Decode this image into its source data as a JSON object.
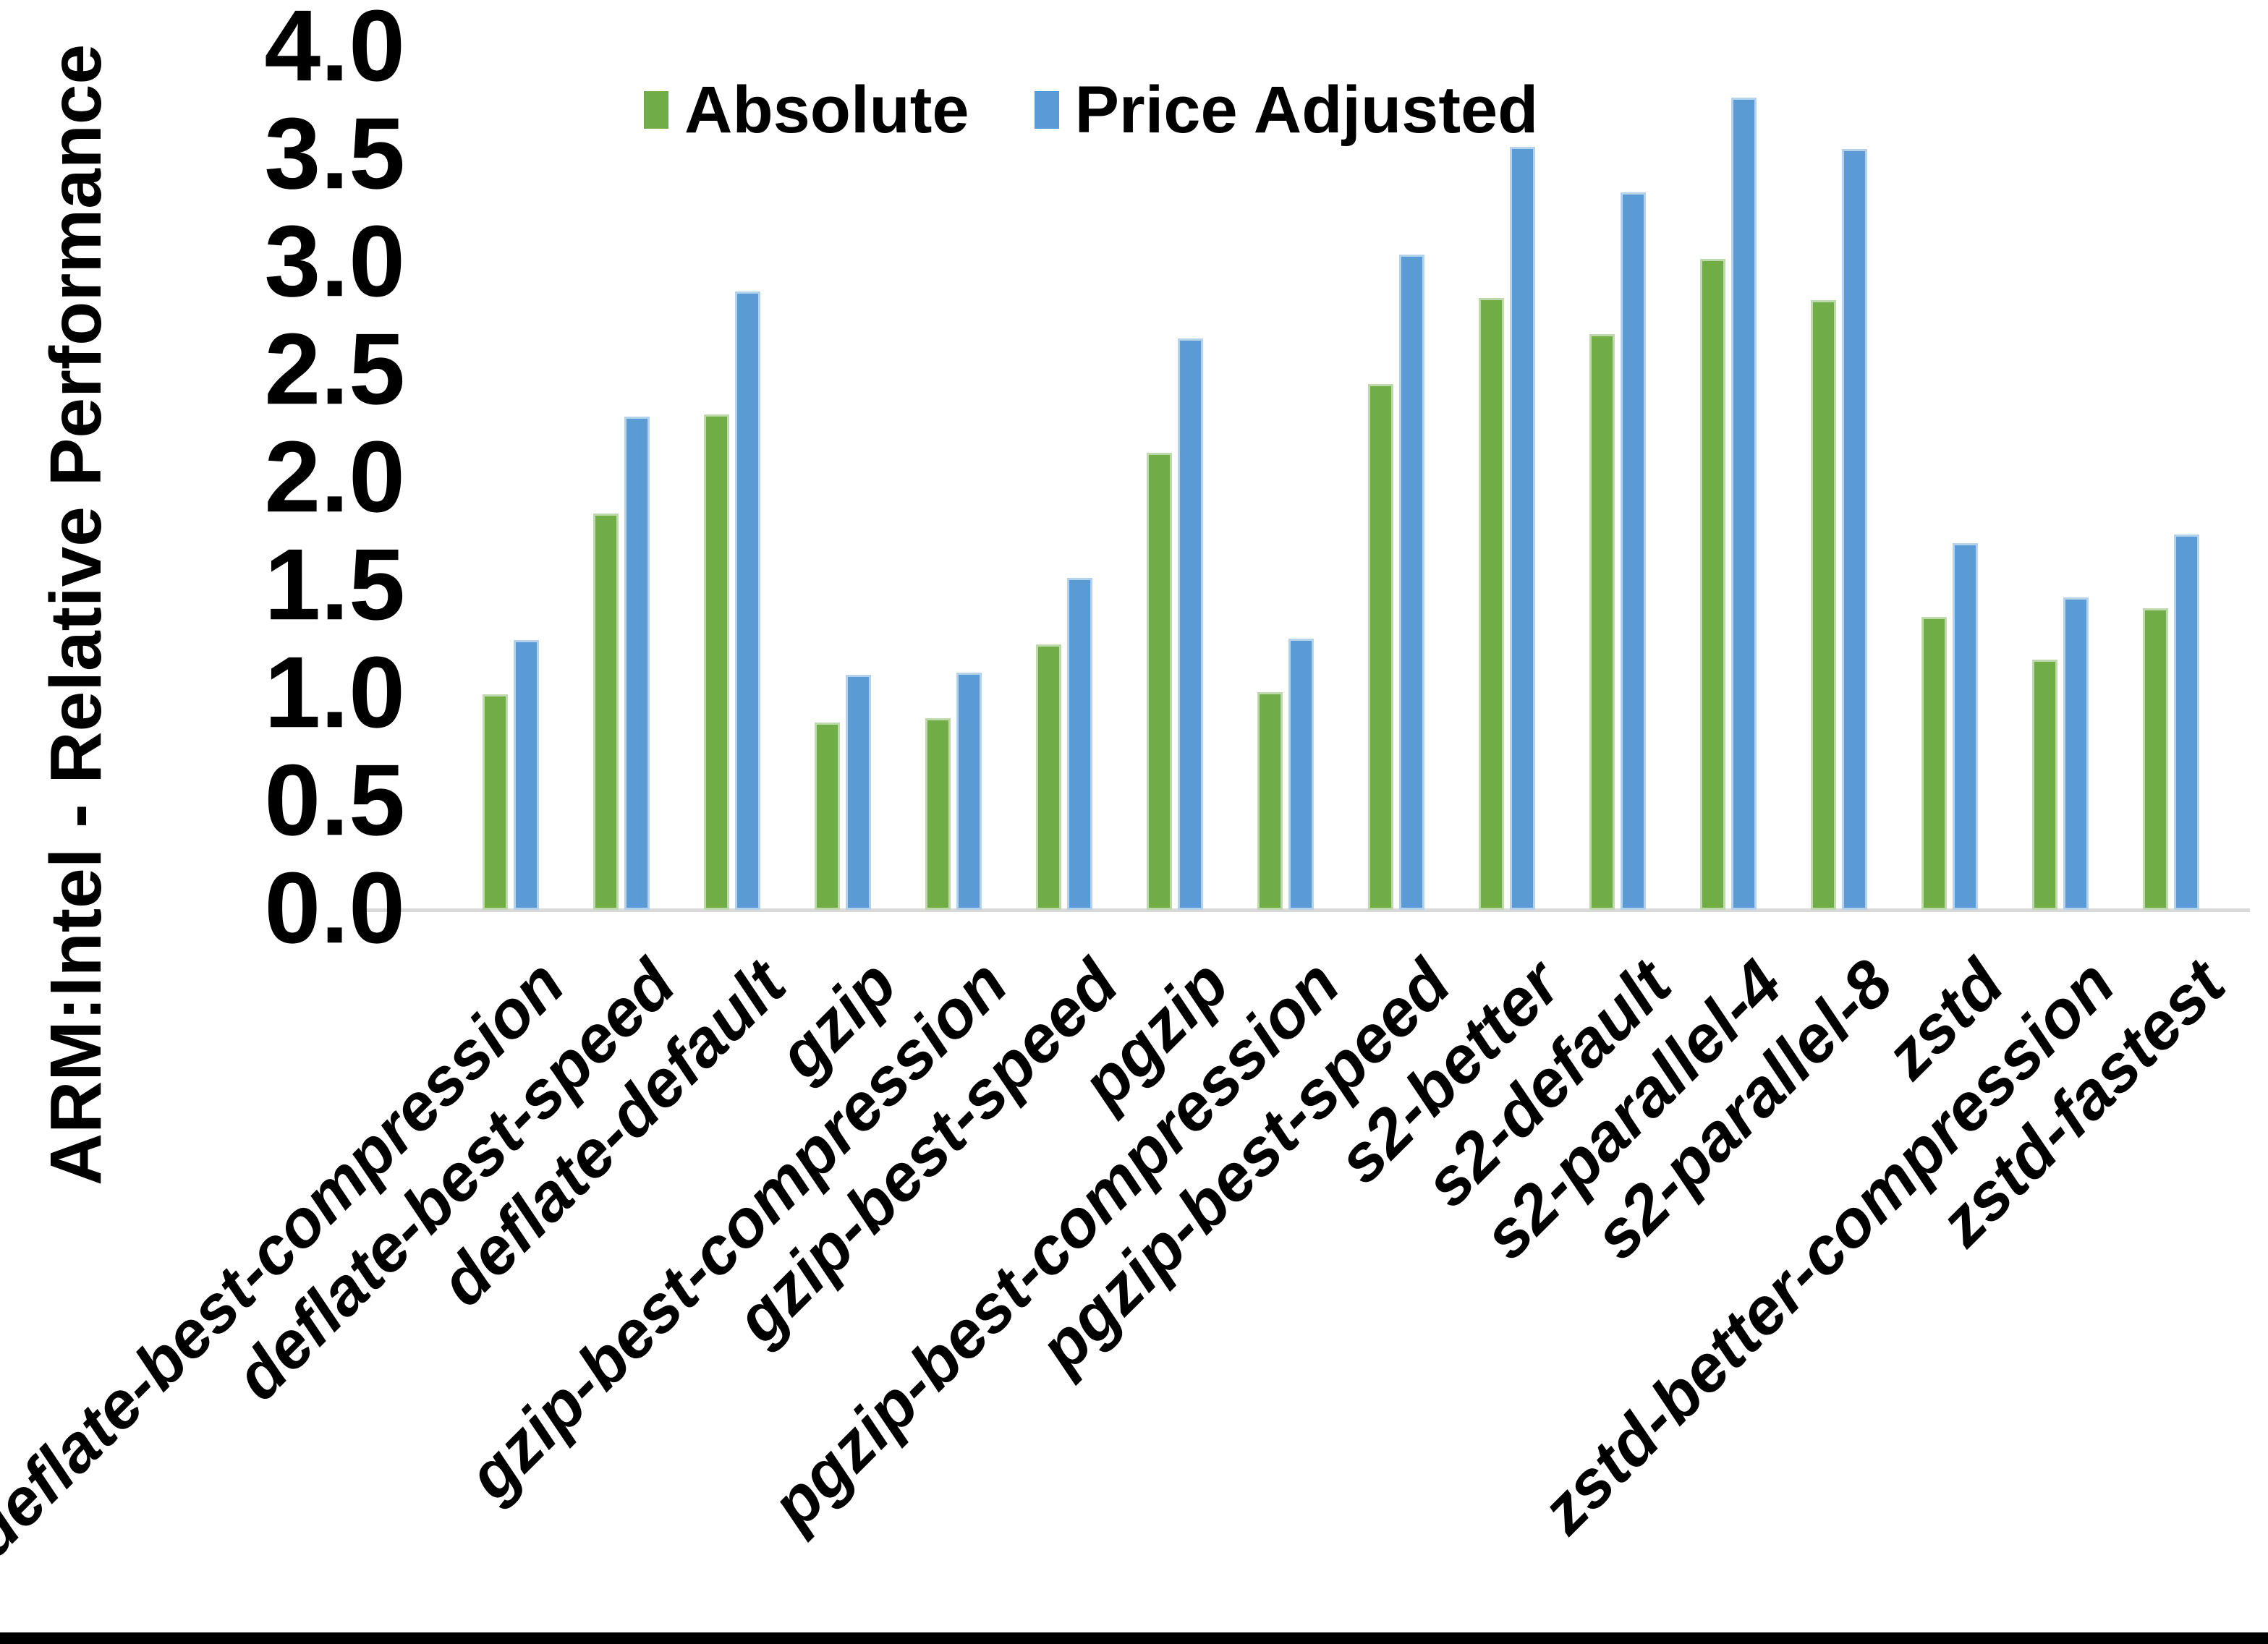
{
  "chart_data": {
    "type": "bar",
    "title": "",
    "xlabel": "",
    "ylabel": "ARM:Intel - Relative Performance",
    "ylim": [
      0.0,
      4.0
    ],
    "ytick_step": 0.5,
    "ytick_labels": [
      "0.0",
      "0.5",
      "1.0",
      "1.5",
      "2.0",
      "2.5",
      "3.0",
      "3.5",
      "4.0"
    ],
    "grid": false,
    "legend_position": "top-center",
    "categories": [
      "deflate-best-compression",
      "deflate-best-speed",
      "deflate-default",
      "gzip",
      "gzip-best-compression",
      "gzip-best-speed",
      "pgzip",
      "pgzip-best-compression",
      "pgzip-best-speed",
      "s2-better",
      "s2-default",
      "s2-parallel-4",
      "s2-parallel-8",
      "zstd",
      "zstd-better-compression",
      "zstd-fastest"
    ],
    "series": [
      {
        "name": "Absolute",
        "color": "#70AD47",
        "values": [
          1.0,
          1.84,
          2.3,
          0.87,
          0.89,
          1.23,
          2.12,
          1.01,
          2.44,
          2.84,
          2.67,
          3.02,
          2.83,
          1.36,
          1.16,
          1.4
        ]
      },
      {
        "name": "Price Adjusted",
        "color": "#5B9BD5",
        "values": [
          1.25,
          2.29,
          2.87,
          1.09,
          1.1,
          1.54,
          2.65,
          1.26,
          3.04,
          3.54,
          3.33,
          3.77,
          3.53,
          1.7,
          1.45,
          1.74
        ]
      }
    ]
  },
  "colors": {
    "axis_line": "#D9D9D9",
    "text": "#000000",
    "background": "#FFFFFF",
    "bottom_border": "#000000"
  }
}
